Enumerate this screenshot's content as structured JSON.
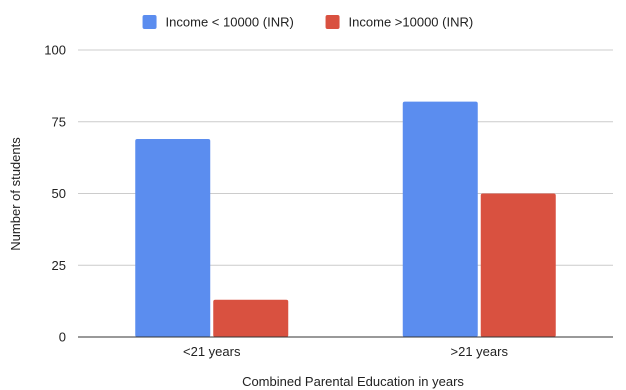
{
  "chart_data": {
    "type": "bar",
    "categories": [
      "<21 years",
      ">21 years"
    ],
    "series": [
      {
        "name": "Income < 10000 (INR)",
        "color": "#5b8def",
        "values": [
          69,
          82
        ]
      },
      {
        "name": "Income >10000 (INR)",
        "color": "#d95140",
        "values": [
          13,
          50
        ]
      }
    ],
    "xlabel": "Combined Parental Education in years",
    "ylabel": "Number of students",
    "ylim": [
      0,
      100
    ],
    "yticks": [
      0,
      25,
      50,
      75,
      100
    ],
    "grid": true,
    "legend_position": "top"
  }
}
